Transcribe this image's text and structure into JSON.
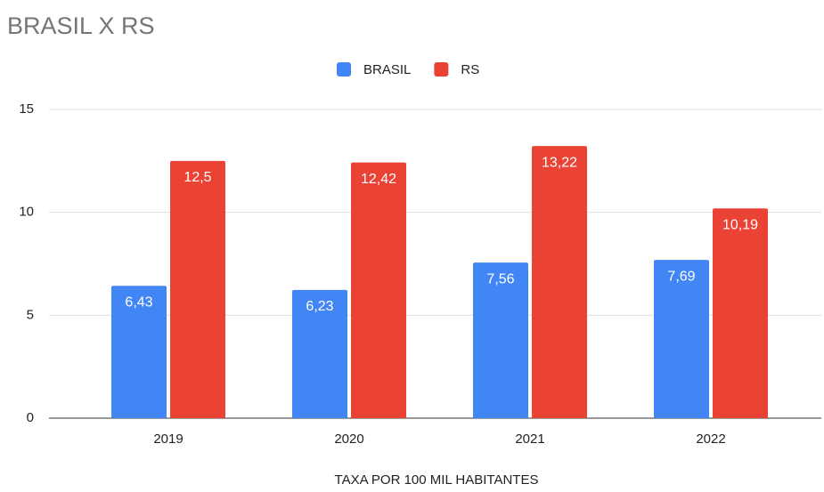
{
  "chart_data": {
    "type": "bar",
    "title": "BRASIL X RS",
    "x_label": "TAXA POR 100 MIL HABITANTES",
    "categories": [
      "2019",
      "2020",
      "2021",
      "2022"
    ],
    "series": [
      {
        "name": "BRASIL",
        "color": "#4285f4",
        "values": [
          6.43,
          6.23,
          7.56,
          7.69
        ],
        "value_labels": [
          "6,43",
          "6,23",
          "7,56",
          "7,69"
        ]
      },
      {
        "name": "RS",
        "color": "#ea4335",
        "values": [
          12.5,
          12.42,
          13.22,
          10.19
        ],
        "value_labels": [
          "12,5",
          "12,42",
          "13,22",
          "10,19"
        ]
      }
    ],
    "ylim": [
      0,
      15
    ],
    "yticks": [
      0,
      5,
      10,
      15
    ],
    "grid": true,
    "legend": "top"
  }
}
